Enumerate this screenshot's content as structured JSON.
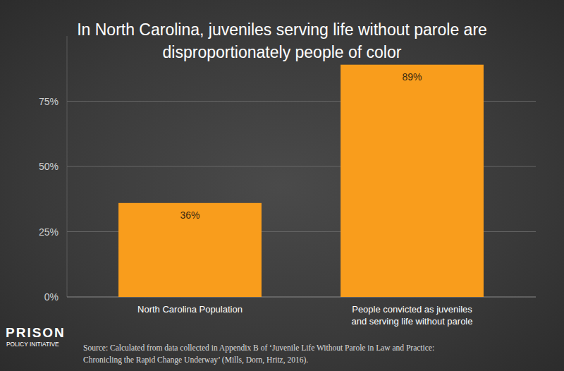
{
  "chart_data": {
    "type": "bar",
    "title": "In North Carolina, juveniles serving life without parole are\ndisproportionately people of color",
    "categories": [
      "North Carolina Population",
      "People convicted as juveniles\nand serving life without parole"
    ],
    "values": [
      36,
      89
    ],
    "value_labels": [
      "36%",
      "89%"
    ],
    "data_labels": true,
    "color": "#f99d1c",
    "ylim": [
      0,
      100
    ],
    "yticks": [
      {
        "value": 0,
        "label": "0%"
      },
      {
        "value": 25,
        "label": "25%"
      },
      {
        "value": 50,
        "label": "50%"
      },
      {
        "value": 75,
        "label": "75%"
      }
    ],
    "grid": true,
    "source": "Source: Calculated from data collected in Appendix B of ‘Juvenile Life Without Parole in Law and Practice:\nChronicling the Rapid Change Underway’ (Mills, Dorn, Hritz, 2016).",
    "logo": [
      "PRISON",
      "POLICY INITIATIVE"
    ]
  }
}
